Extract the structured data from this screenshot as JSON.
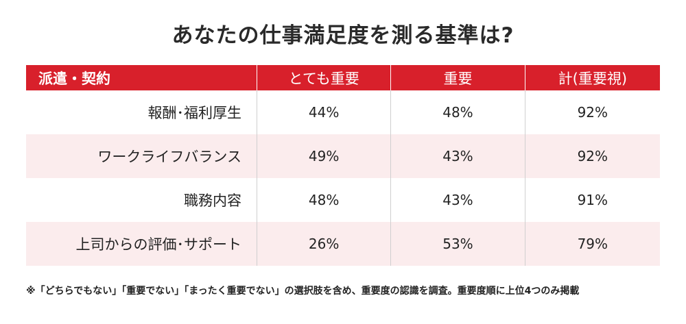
{
  "title": "あなたの仕事満足度を測る基準は?",
  "chart_data": {
    "type": "table",
    "title": "あなたの仕事満足度を測る基準は?",
    "columns": [
      "派遣・契約",
      "とても重要",
      "重要",
      "計(重要視)"
    ],
    "rows": [
      {
        "label": "報酬･福利厚生",
        "values": [
          "44%",
          "48%",
          "92%"
        ]
      },
      {
        "label": "ワークライフバランス",
        "values": [
          "49%",
          "43%",
          "92%"
        ]
      },
      {
        "label": "職務内容",
        "values": [
          "48%",
          "43%",
          "91%"
        ]
      },
      {
        "label": "上司からの評価･サポート",
        "values": [
          "26%",
          "53%",
          "79%"
        ]
      }
    ]
  },
  "colors": {
    "header_bg": "#d8202b",
    "alt_row_bg": "#fbeced"
  },
  "footnote": "※「どちらでもない」「重要でない」「まったく重要でない」の選択肢を含め、重要度の認識を調査。重要度順に上位4つのみ掲載"
}
